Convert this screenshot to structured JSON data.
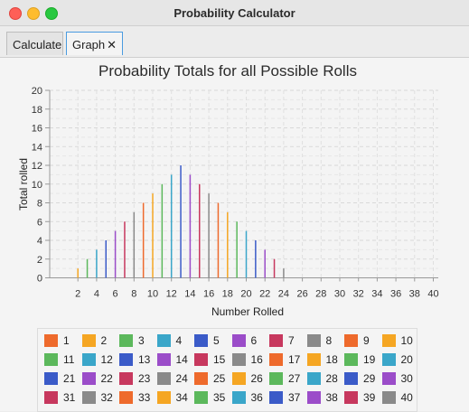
{
  "window": {
    "title": "Probability Calculator"
  },
  "tabs": [
    {
      "label": "Calculate",
      "active": false
    },
    {
      "label": "Graph",
      "active": true,
      "close": "✕"
    }
  ],
  "chart_data": {
    "type": "bar",
    "title": "Probability Totals for all Possible Rolls",
    "xlabel": "Number Rolled",
    "ylabel": "Total rolled",
    "ylim": [
      0,
      20
    ],
    "yticks": [
      0,
      2,
      4,
      6,
      8,
      10,
      12,
      14,
      16,
      18,
      20
    ],
    "xticks": [
      2,
      4,
      6,
      8,
      10,
      12,
      14,
      16,
      18,
      20,
      22,
      24,
      26,
      28,
      30,
      32,
      34,
      36,
      38,
      40
    ],
    "grid": true,
    "legend_position": "bottom",
    "categories": [
      "1",
      "2",
      "3",
      "4",
      "5",
      "6",
      "7",
      "8",
      "9",
      "10",
      "11",
      "12",
      "13",
      "14",
      "15",
      "16",
      "17",
      "18",
      "19",
      "20",
      "21",
      "22",
      "23",
      "24",
      "25",
      "26",
      "27",
      "28",
      "29",
      "30",
      "31",
      "32",
      "33",
      "34",
      "35",
      "36",
      "37",
      "38",
      "39",
      "40"
    ],
    "values": [
      0,
      1,
      2,
      3,
      4,
      5,
      6,
      7,
      8,
      9,
      10,
      11,
      12,
      11,
      10,
      9,
      8,
      7,
      6,
      5,
      4,
      3,
      2,
      1,
      0,
      0,
      0,
      0,
      0,
      0,
      0,
      0,
      0,
      0,
      0,
      0,
      0,
      0,
      0,
      0
    ],
    "colors": [
      "#ee6a2c",
      "#f5a623",
      "#5cb85c",
      "#3aa6c9",
      "#3b5bc8",
      "#9b4dc9",
      "#c7385e",
      "#8a8a8a",
      "#ee6a2c",
      "#f5a623",
      "#5cb85c",
      "#3aa6c9",
      "#3b5bc8",
      "#9b4dc9",
      "#c7385e",
      "#8a8a8a",
      "#ee6a2c",
      "#f5a623",
      "#5cb85c",
      "#3aa6c9",
      "#3b5bc8",
      "#9b4dc9",
      "#c7385e",
      "#8a8a8a",
      "#ee6a2c",
      "#f5a623",
      "#5cb85c",
      "#3aa6c9",
      "#3b5bc8",
      "#9b4dc9",
      "#c7385e",
      "#8a8a8a",
      "#ee6a2c",
      "#f5a623",
      "#5cb85c",
      "#3aa6c9",
      "#3b5bc8",
      "#9b4dc9",
      "#c7385e",
      "#8a8a8a"
    ],
    "legend_labels": [
      "1",
      "2",
      "3",
      "4",
      "5",
      "6",
      "7",
      "8",
      "9",
      "10",
      "11",
      "12",
      "13",
      "14",
      "15",
      "16",
      "17",
      "18",
      "19",
      "20",
      "21",
      "22",
      "23",
      "24",
      "25",
      "26",
      "27",
      "28",
      "29",
      "30",
      "31",
      "32",
      "33",
      "34",
      "35",
      "36",
      "37",
      "38",
      "39",
      "40"
    ]
  }
}
